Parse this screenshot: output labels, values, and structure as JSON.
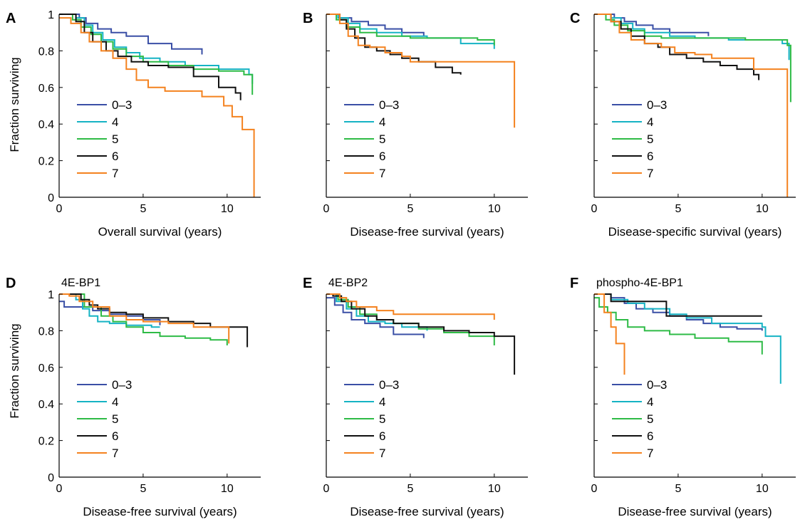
{
  "figure": {
    "y_label_shared": "Fraction surviving"
  },
  "colors": {
    "0-3": "#3a4fa6",
    "4": "#16b3c4",
    "5": "#2ebb46",
    "6": "#111111",
    "7": "#f4821f"
  },
  "chart_data": [
    {
      "type": "line",
      "panel": "A",
      "title": "",
      "xlabel": "Overall survival (years)",
      "ylabel": "Fraction surviving",
      "xlim": [
        0,
        12
      ],
      "ylim": [
        0,
        1
      ],
      "xticks": [
        "0",
        "5",
        "10"
      ],
      "yticks": [
        "0",
        "0.2",
        "0.4",
        "0.6",
        "0.8",
        "1"
      ],
      "legend": [
        "0–3",
        "4",
        "5",
        "6",
        "7"
      ],
      "series": [
        {
          "name": "0–3",
          "x": [
            0,
            1.2,
            1.6,
            2.3,
            3.1,
            4.0,
            5.3,
            6.7,
            8.5
          ],
          "y": [
            1,
            0.98,
            0.95,
            0.92,
            0.9,
            0.88,
            0.84,
            0.81,
            0.78
          ]
        },
        {
          "name": "4",
          "x": [
            0,
            1.0,
            1.5,
            2.0,
            2.6,
            3.3,
            4.0,
            4.8,
            6.0,
            7.5,
            9.5,
            11.3,
            11.5
          ],
          "y": [
            1,
            0.98,
            0.94,
            0.9,
            0.86,
            0.82,
            0.79,
            0.76,
            0.74,
            0.72,
            0.7,
            0.67,
            0.62
          ]
        },
        {
          "name": "5",
          "x": [
            0,
            0.8,
            1.3,
            1.9,
            2.5,
            3.2,
            4.0,
            5.0,
            6.5,
            8.0,
            9.5,
            11.0,
            11.5
          ],
          "y": [
            1,
            0.97,
            0.93,
            0.89,
            0.85,
            0.81,
            0.77,
            0.74,
            0.72,
            0.7,
            0.69,
            0.67,
            0.56
          ]
        },
        {
          "name": "6",
          "x": [
            0,
            1.0,
            1.5,
            2.0,
            2.8,
            3.5,
            4.3,
            5.3,
            6.5,
            8.0,
            9.5,
            10.5,
            10.8
          ],
          "y": [
            1,
            0.96,
            0.9,
            0.85,
            0.8,
            0.77,
            0.74,
            0.72,
            0.71,
            0.66,
            0.6,
            0.57,
            0.53
          ]
        },
        {
          "name": "7",
          "x": [
            0,
            0.7,
            1.3,
            1.8,
            2.5,
            3.2,
            4.0,
            4.6,
            5.3,
            6.3,
            7.5,
            8.5,
            9.8,
            10.3,
            10.9,
            11.5,
            11.6
          ],
          "y": [
            0.98,
            0.95,
            0.9,
            0.85,
            0.8,
            0.76,
            0.7,
            0.64,
            0.6,
            0.58,
            0.58,
            0.55,
            0.5,
            0.44,
            0.37,
            0.37,
            0
          ]
        }
      ]
    },
    {
      "type": "line",
      "panel": "B",
      "title": "",
      "xlabel": "Disease-free survival (years)",
      "ylabel": "",
      "xlim": [
        0,
        12
      ],
      "ylim": [
        0,
        1
      ],
      "xticks": [
        "0",
        "5",
        "10"
      ],
      "yticks": [
        "0",
        "0.2",
        "0.4",
        "0.6",
        "0.8",
        "1"
      ],
      "legend": [
        "0–3",
        "4",
        "5",
        "6",
        "7"
      ],
      "series": [
        {
          "name": "0–3",
          "x": [
            0,
            0.8,
            1.5,
            2.5,
            3.5,
            4.5,
            5.8
          ],
          "y": [
            1,
            0.98,
            0.96,
            0.94,
            0.92,
            0.9,
            0.88
          ]
        },
        {
          "name": "4",
          "x": [
            0,
            0.7,
            1.3,
            2.0,
            3.0,
            4.5,
            6.0,
            8.0,
            10.0
          ],
          "y": [
            1,
            0.98,
            0.95,
            0.92,
            0.9,
            0.88,
            0.87,
            0.84,
            0.81
          ]
        },
        {
          "name": "5",
          "x": [
            0,
            0.6,
            1.2,
            2.0,
            3.0,
            5.0,
            7.0,
            9.0,
            10.0
          ],
          "y": [
            1,
            0.97,
            0.93,
            0.9,
            0.88,
            0.87,
            0.87,
            0.86,
            0.83
          ]
        },
        {
          "name": "6",
          "x": [
            0,
            0.8,
            1.2,
            1.7,
            2.3,
            3.0,
            3.8,
            4.5,
            5.5,
            6.5,
            7.5,
            8.0
          ],
          "y": [
            1,
            0.97,
            0.92,
            0.87,
            0.82,
            0.8,
            0.78,
            0.76,
            0.74,
            0.71,
            0.68,
            0.67
          ]
        },
        {
          "name": "7",
          "x": [
            0,
            0.8,
            1.3,
            1.9,
            2.6,
            3.5,
            4.5,
            5.0,
            11.2,
            11.2
          ],
          "y": [
            1,
            0.95,
            0.88,
            0.83,
            0.82,
            0.79,
            0.77,
            0.74,
            0.74,
            0.38
          ]
        }
      ]
    },
    {
      "type": "line",
      "panel": "C",
      "title": "",
      "xlabel": "Disease-specific survival (years)",
      "ylabel": "",
      "xlim": [
        0,
        12
      ],
      "ylim": [
        0,
        1
      ],
      "xticks": [
        "0",
        "5",
        "10"
      ],
      "yticks": [
        "0",
        "0.2",
        "0.4",
        "0.6",
        "0.8",
        "1"
      ],
      "legend": [
        "0–3",
        "4",
        "5",
        "6",
        "7"
      ],
      "series": [
        {
          "name": "0–3",
          "x": [
            0,
            1.2,
            1.8,
            2.5,
            3.5,
            4.5,
            6.8
          ],
          "y": [
            1,
            0.98,
            0.96,
            0.94,
            0.92,
            0.9,
            0.88
          ]
        },
        {
          "name": "4",
          "x": [
            0,
            1.0,
            1.6,
            2.3,
            3.0,
            4.5,
            6.0,
            8.0,
            11.2,
            11.6
          ],
          "y": [
            1,
            0.98,
            0.95,
            0.92,
            0.9,
            0.88,
            0.87,
            0.86,
            0.84,
            0.75
          ]
        },
        {
          "name": "5",
          "x": [
            0,
            0.7,
            1.2,
            2.0,
            3.0,
            4.0,
            5.5,
            7.0,
            9.0,
            11.5,
            11.7
          ],
          "y": [
            1,
            0.97,
            0.94,
            0.91,
            0.88,
            0.87,
            0.87,
            0.87,
            0.86,
            0.83,
            0.52
          ]
        },
        {
          "name": "6",
          "x": [
            0,
            1.0,
            1.6,
            2.2,
            3.0,
            3.8,
            4.5,
            5.5,
            6.5,
            7.5,
            8.5,
            9.5,
            9.8
          ],
          "y": [
            1,
            0.96,
            0.92,
            0.88,
            0.84,
            0.82,
            0.78,
            0.76,
            0.74,
            0.72,
            0.7,
            0.67,
            0.64
          ]
        },
        {
          "name": "7",
          "x": [
            0,
            1.0,
            1.5,
            2.2,
            3.0,
            4.0,
            4.8,
            6.0,
            7.0,
            9.5,
            11.5,
            11.5
          ],
          "y": [
            1,
            0.96,
            0.9,
            0.86,
            0.84,
            0.82,
            0.79,
            0.78,
            0.76,
            0.7,
            0.7,
            0
          ]
        }
      ]
    },
    {
      "type": "line",
      "panel": "D",
      "title": "4E-BP1",
      "xlabel": "Disease-free survival (years)",
      "ylabel": "Fraction surviving",
      "xlim": [
        0,
        12
      ],
      "ylim": [
        0,
        1
      ],
      "xticks": [
        "0",
        "5",
        "10"
      ],
      "yticks": [
        "0",
        "0.2",
        "0.4",
        "0.6",
        "0.8",
        "1"
      ],
      "legend": [
        "0–3",
        "4",
        "5",
        "6",
        "7"
      ],
      "series": [
        {
          "name": "0–3",
          "x": [
            0,
            0.3,
            1.2,
            2.0,
            3.0,
            4.0,
            5.0,
            6.0
          ],
          "y": [
            0.96,
            0.93,
            0.93,
            0.91,
            0.89,
            0.88,
            0.86,
            0.83
          ]
        },
        {
          "name": "4",
          "x": [
            0,
            1.0,
            1.4,
            1.8,
            2.3,
            3.0,
            4.0,
            5.5,
            6.0
          ],
          "y": [
            1,
            0.97,
            0.92,
            0.88,
            0.85,
            0.84,
            0.83,
            0.82,
            0.82
          ]
        },
        {
          "name": "5",
          "x": [
            0,
            1.5,
            2.5,
            3.2,
            4.0,
            5.0,
            6.0,
            7.5,
            9.0,
            10.0
          ],
          "y": [
            1,
            0.93,
            0.88,
            0.85,
            0.82,
            0.79,
            0.77,
            0.76,
            0.75,
            0.72
          ]
        },
        {
          "name": "6",
          "x": [
            0,
            0.3,
            1.3,
            1.8,
            2.3,
            3.0,
            4.0,
            5.0,
            6.5,
            8.0,
            9.0,
            11.2,
            11.2
          ],
          "y": [
            1,
            1,
            0.97,
            0.94,
            0.92,
            0.9,
            0.89,
            0.87,
            0.85,
            0.84,
            0.82,
            0.82,
            0.71
          ]
        },
        {
          "name": "7",
          "x": [
            0,
            0.6,
            1.2,
            2.0,
            3.0,
            4.0,
            5.0,
            6.5,
            8.0,
            10.1,
            10.1
          ],
          "y": [
            1,
            0.99,
            0.96,
            0.93,
            0.88,
            0.86,
            0.85,
            0.84,
            0.82,
            0.8,
            0.73
          ]
        }
      ]
    },
    {
      "type": "line",
      "panel": "E",
      "title": "4E-BP2",
      "xlabel": "Disease-free survival (years)",
      "ylabel": "",
      "xlim": [
        0,
        12
      ],
      "ylim": [
        0,
        1
      ],
      "xticks": [
        "0",
        "5",
        "10"
      ],
      "yticks": [
        "0",
        "0.2",
        "0.4",
        "0.6",
        "0.8",
        "1"
      ],
      "legend": [
        "0–3",
        "4",
        "5",
        "6",
        "7"
      ],
      "series": [
        {
          "name": "0–3",
          "x": [
            0,
            0.5,
            1.0,
            1.5,
            2.3,
            3.2,
            4.0,
            5.8
          ],
          "y": [
            0.98,
            0.94,
            0.9,
            0.86,
            0.84,
            0.82,
            0.78,
            0.76
          ]
        },
        {
          "name": "4",
          "x": [
            0,
            0.6,
            1.2,
            1.8,
            2.5,
            3.5,
            4.5,
            6.0
          ],
          "y": [
            1,
            0.96,
            0.92,
            0.88,
            0.85,
            0.84,
            0.82,
            0.8
          ]
        },
        {
          "name": "5",
          "x": [
            0,
            0.7,
            1.3,
            2.0,
            3.0,
            4.0,
            5.5,
            7.0,
            8.5,
            10.0,
            10.0
          ],
          "y": [
            1,
            0.97,
            0.93,
            0.89,
            0.86,
            0.84,
            0.81,
            0.79,
            0.77,
            0.75,
            0.72
          ]
        },
        {
          "name": "6",
          "x": [
            0,
            0.4,
            0.9,
            1.5,
            2.3,
            3.0,
            4.0,
            5.5,
            7.0,
            8.5,
            10.0,
            11.2,
            11.2
          ],
          "y": [
            1,
            0.99,
            0.96,
            0.92,
            0.88,
            0.86,
            0.84,
            0.82,
            0.8,
            0.79,
            0.77,
            0.75,
            0.56
          ]
        },
        {
          "name": "7",
          "x": [
            0,
            0.8,
            1.2,
            1.8,
            3.0,
            4.0,
            5.5,
            10.0,
            10.0
          ],
          "y": [
            1,
            0.98,
            0.96,
            0.93,
            0.91,
            0.89,
            0.89,
            0.89,
            0.86
          ]
        }
      ]
    },
    {
      "type": "line",
      "panel": "F",
      "title": "phospho-4E-BP1",
      "xlabel": "Disease-free survival (years)",
      "ylabel": "",
      "xlim": [
        0,
        12
      ],
      "ylim": [
        0,
        1
      ],
      "xticks": [
        "0",
        "5",
        "10"
      ],
      "yticks": [
        "0",
        "0.2",
        "0.4",
        "0.6",
        "0.8",
        "1"
      ],
      "legend": [
        "0–3",
        "4",
        "5",
        "6",
        "7"
      ],
      "series": [
        {
          "name": "0–3",
          "x": [
            0,
            1.0,
            1.8,
            2.5,
            3.5,
            4.5,
            5.5,
            6.5,
            7.5,
            8.5,
            10.0
          ],
          "y": [
            1,
            0.98,
            0.95,
            0.92,
            0.9,
            0.88,
            0.86,
            0.84,
            0.82,
            0.81,
            0.8
          ]
        },
        {
          "name": "4",
          "x": [
            0,
            1.0,
            2.0,
            3.0,
            4.5,
            5.5,
            7.0,
            10.0,
            10.2,
            11.1,
            11.1
          ],
          "y": [
            1,
            0.97,
            0.95,
            0.92,
            0.89,
            0.87,
            0.84,
            0.82,
            0.77,
            0.77,
            0.51
          ]
        },
        {
          "name": "5",
          "x": [
            0,
            0.3,
            0.8,
            1.3,
            2.0,
            3.0,
            4.5,
            6.0,
            8.0,
            10.0,
            10.0
          ],
          "y": [
            0.98,
            0.93,
            0.9,
            0.86,
            0.82,
            0.8,
            0.78,
            0.76,
            0.74,
            0.73,
            0.67
          ]
        },
        {
          "name": "6",
          "x": [
            0,
            0.5,
            1.0,
            2.0,
            3.0,
            4.3,
            4.3,
            10.0
          ],
          "y": [
            1,
            1,
            0.96,
            0.96,
            0.96,
            0.96,
            0.88,
            0.88
          ]
        },
        {
          "name": "7",
          "x": [
            0,
            0.6,
            1.0,
            1.3,
            1.8,
            1.8
          ],
          "y": [
            1,
            0.9,
            0.82,
            0.73,
            0.73,
            0.56
          ]
        }
      ]
    }
  ]
}
